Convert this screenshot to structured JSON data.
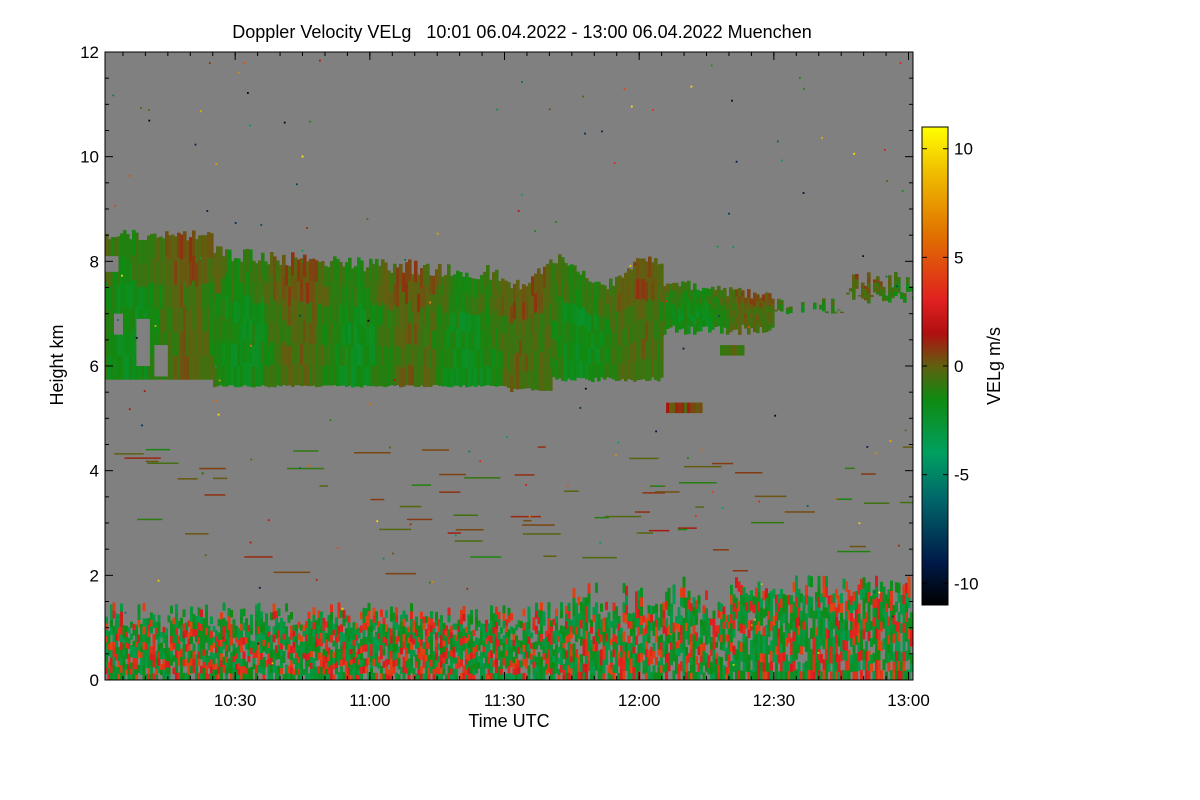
{
  "chart_data": {
    "type": "heatmap",
    "title": "Doppler Velocity VELg   10:01 06.04.2022 - 13:00 06.04.2022 Muenchen",
    "xlabel": "Time UTC",
    "ylabel": "Height km",
    "xlim_minutes_utc": [
      601,
      781
    ],
    "ylim": [
      0,
      12
    ],
    "x_ticks": [
      {
        "minutes": 630,
        "label": "10:30"
      },
      {
        "minutes": 660,
        "label": "11:00"
      },
      {
        "minutes": 690,
        "label": "11:30"
      },
      {
        "minutes": 720,
        "label": "12:00"
      },
      {
        "minutes": 750,
        "label": "12:30"
      },
      {
        "minutes": 780,
        "label": "13:00"
      }
    ],
    "y_ticks": [
      {
        "value": 0,
        "label": "0"
      },
      {
        "value": 2,
        "label": "2"
      },
      {
        "value": 4,
        "label": "4"
      },
      {
        "value": 6,
        "label": "6"
      },
      {
        "value": 8,
        "label": "8"
      },
      {
        "value": 10,
        "label": "10"
      },
      {
        "value": 12,
        "label": "12"
      }
    ],
    "colorbar": {
      "label": "VELg m/s",
      "range": [
        -11,
        11
      ],
      "ticks": [
        {
          "value": 10,
          "label": "10"
        },
        {
          "value": 5,
          "label": "5"
        },
        {
          "value": 0,
          "label": "0"
        },
        {
          "value": -5,
          "label": "-5"
        },
        {
          "value": -10,
          "label": "-10"
        }
      ],
      "stops": [
        {
          "value": -11,
          "color": "#000000"
        },
        {
          "value": -9,
          "color": "#001a4a"
        },
        {
          "value": -6,
          "color": "#006a6a"
        },
        {
          "value": -4,
          "color": "#00a060"
        },
        {
          "value": -1.5,
          "color": "#108a10"
        },
        {
          "value": 0,
          "color": "#606010"
        },
        {
          "value": 1.5,
          "color": "#b01010"
        },
        {
          "value": 3,
          "color": "#e02020"
        },
        {
          "value": 6,
          "color": "#e07000"
        },
        {
          "value": 9,
          "color": "#f0c000"
        },
        {
          "value": 11,
          "color": "#ffff00"
        }
      ]
    },
    "background_color": "#808080",
    "regions": [
      {
        "name": "cirrus-layer",
        "t_start": 601,
        "t_end": 781,
        "base_km": 5.6,
        "top_km": 8.6,
        "mean_velocity_ms": -1
      },
      {
        "name": "mid-level-fragments",
        "t_start": 726,
        "t_end": 734,
        "base_km": 5.1,
        "top_km": 5.3,
        "mean_velocity_ms": 0.5
      },
      {
        "name": "boundary-layer",
        "t_start": 601,
        "t_end": 781,
        "base_km": 0,
        "top_km": 2.1,
        "mean_velocity_ms": -0.5
      }
    ]
  }
}
